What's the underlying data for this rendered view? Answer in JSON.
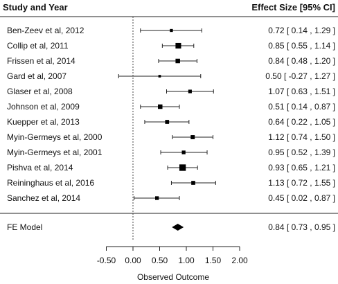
{
  "header": {
    "study_col": "Study and Year",
    "effect_col": "Effect Size [95% CI]"
  },
  "chart_data": {
    "type": "forest",
    "xlabel": "Observed Outcome",
    "xlim": [
      -0.5,
      2.0
    ],
    "xticks": [
      -0.5,
      0.0,
      0.5,
      1.0,
      1.5,
      2.0
    ],
    "xtick_labels": [
      "-0.50",
      "0.00",
      "0.50",
      "1.00",
      "1.50",
      "2.00"
    ],
    "reference_line": 0,
    "studies": [
      {
        "label": "Ben-Zeev et al, 2012",
        "est": 0.72,
        "lo": 0.14,
        "hi": 1.29,
        "weight": 0.45,
        "text": "0.72 [  0.14 ,  1.29 ]"
      },
      {
        "label": "Collip et al, 2011",
        "est": 0.85,
        "lo": 0.55,
        "hi": 1.14,
        "weight": 1.4,
        "text": "0.85 [  0.55 ,  1.14 ]"
      },
      {
        "label": "Frissen et al, 2014",
        "est": 0.84,
        "lo": 0.48,
        "hi": 1.2,
        "weight": 1.0,
        "text": "0.84 [  0.48 ,  1.20 ]"
      },
      {
        "label": "Gard et al, 2007",
        "est": 0.5,
        "lo": -0.27,
        "hi": 1.27,
        "weight": 0.3,
        "text": "0.50 [ -0.27 ,  1.27 ]"
      },
      {
        "label": "Glaser et al, 2008",
        "est": 1.07,
        "lo": 0.63,
        "hi": 1.51,
        "weight": 0.65,
        "text": "1.07 [  0.63 ,  1.51 ]"
      },
      {
        "label": "Johnson et al, 2009",
        "est": 0.51,
        "lo": 0.14,
        "hi": 0.87,
        "weight": 1.0,
        "text": "0.51 [  0.14 ,  0.87 ]"
      },
      {
        "label": "Kuepper et al, 2013",
        "est": 0.64,
        "lo": 0.22,
        "hi": 1.05,
        "weight": 0.8,
        "text": "0.64 [  0.22 ,  1.05 ]"
      },
      {
        "label": "Myin-Germeys et al, 2000",
        "est": 1.12,
        "lo": 0.74,
        "hi": 1.5,
        "weight": 0.85,
        "text": "1.12 [  0.74 ,  1.50 ]"
      },
      {
        "label": "Myin-Germeys et al, 2001",
        "est": 0.95,
        "lo": 0.52,
        "hi": 1.39,
        "weight": 0.7,
        "text": "0.95 [  0.52 ,  1.39 ]"
      },
      {
        "label": "Pishva et al, 2014",
        "est": 0.93,
        "lo": 0.65,
        "hi": 1.21,
        "weight": 1.7,
        "text": "0.93 [  0.65 ,  1.21 ]"
      },
      {
        "label": "Reininghaus et al, 2016",
        "est": 1.13,
        "lo": 0.72,
        "hi": 1.55,
        "weight": 0.8,
        "text": "1.13 [  0.72 ,  1.55 ]"
      },
      {
        "label": "Sanchez et al, 2014",
        "est": 0.45,
        "lo": 0.02,
        "hi": 0.87,
        "weight": 0.7,
        "text": "0.45 [  0.02 ,  0.87 ]"
      }
    ],
    "summary": {
      "label": "FE Model",
      "est": 0.84,
      "lo": 0.73,
      "hi": 0.95,
      "text": "0.84 [  0.73 ,  0.95 ]"
    }
  }
}
